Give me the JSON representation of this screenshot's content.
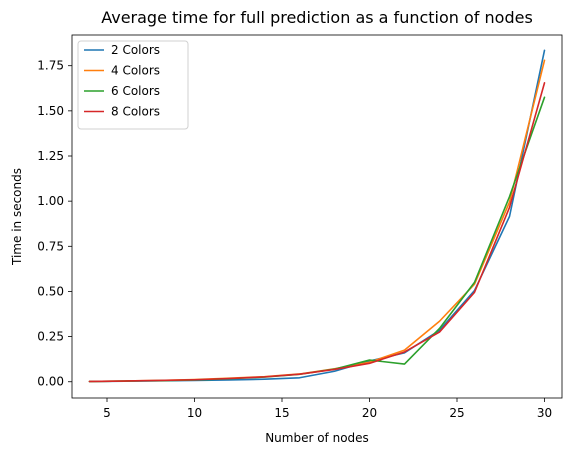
{
  "chart_data": {
    "type": "line",
    "title": "Average time for full prediction as a function of nodes",
    "xlabel": "Number of nodes",
    "ylabel": "Time in seconds",
    "xlim": [
      3.0,
      31.0
    ],
    "ylim": [
      -0.09,
      1.92
    ],
    "xticks": [
      5,
      10,
      15,
      20,
      25,
      30
    ],
    "yticks": [
      0.0,
      0.25,
      0.5,
      0.75,
      1.0,
      1.25,
      1.5,
      1.75
    ],
    "xtick_labels": [
      "5",
      "10",
      "15",
      "20",
      "25",
      "30"
    ],
    "ytick_labels": [
      "0.00",
      "0.25",
      "0.50",
      "0.75",
      "1.00",
      "1.25",
      "1.50",
      "1.75"
    ],
    "grid": false,
    "legend_position": "top-left",
    "x": [
      4,
      6,
      8,
      10,
      12,
      14,
      16,
      18,
      20,
      22,
      24,
      26,
      28,
      30
    ],
    "series": [
      {
        "name": "2 Colors",
        "color": "#1f77b4",
        "values": [
          0.001,
          0.003,
          0.005,
          0.007,
          0.01,
          0.014,
          0.022,
          0.058,
          0.115,
          0.16,
          0.285,
          0.505,
          0.915,
          1.835
        ]
      },
      {
        "name": "4 Colors",
        "color": "#ff7f0e",
        "values": [
          0.002,
          0.004,
          0.007,
          0.012,
          0.02,
          0.028,
          0.043,
          0.072,
          0.108,
          0.175,
          0.335,
          0.54,
          0.995,
          1.78
        ]
      },
      {
        "name": "6 Colors",
        "color": "#2ca02c",
        "values": [
          0.002,
          0.004,
          0.006,
          0.01,
          0.017,
          0.026,
          0.041,
          0.07,
          0.12,
          0.098,
          0.295,
          0.55,
          1.025,
          1.575
        ]
      },
      {
        "name": "8 Colors",
        "color": "#d62728",
        "values": [
          0.002,
          0.004,
          0.007,
          0.011,
          0.018,
          0.027,
          0.042,
          0.068,
          0.102,
          0.165,
          0.275,
          0.495,
          0.965,
          1.655
        ]
      }
    ]
  }
}
